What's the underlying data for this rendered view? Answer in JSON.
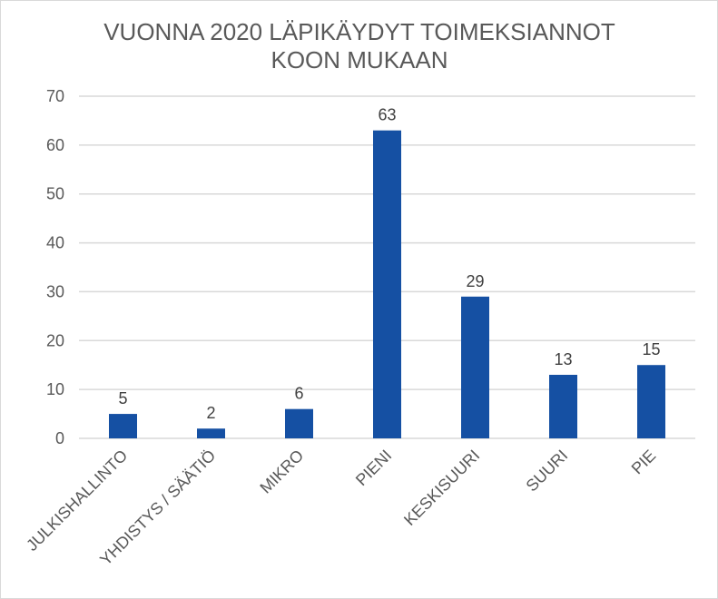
{
  "chart_data": {
    "type": "bar",
    "title_lines": [
      "VUONNA 2020 LÄPIKÄYDYT TOIMEKSIANNOT",
      "KOON MUKAAN"
    ],
    "xlabel": "",
    "ylabel": "",
    "categories": [
      "JULKISHALLINTO",
      "YHDISTYS / SÄÄTIÖ",
      "MIKRO",
      "PIENI",
      "KESKISUURI",
      "SUURI",
      "PIE"
    ],
    "values": [
      5,
      2,
      6,
      63,
      29,
      13,
      15
    ],
    "ylim": [
      0,
      70
    ],
    "yticks": [
      0,
      10,
      20,
      30,
      40,
      50,
      60,
      70
    ],
    "grid": true,
    "legend": "none",
    "bar_color": "#1550a3",
    "grid_color": "#d9d9d9",
    "text_color": "#595959"
  }
}
